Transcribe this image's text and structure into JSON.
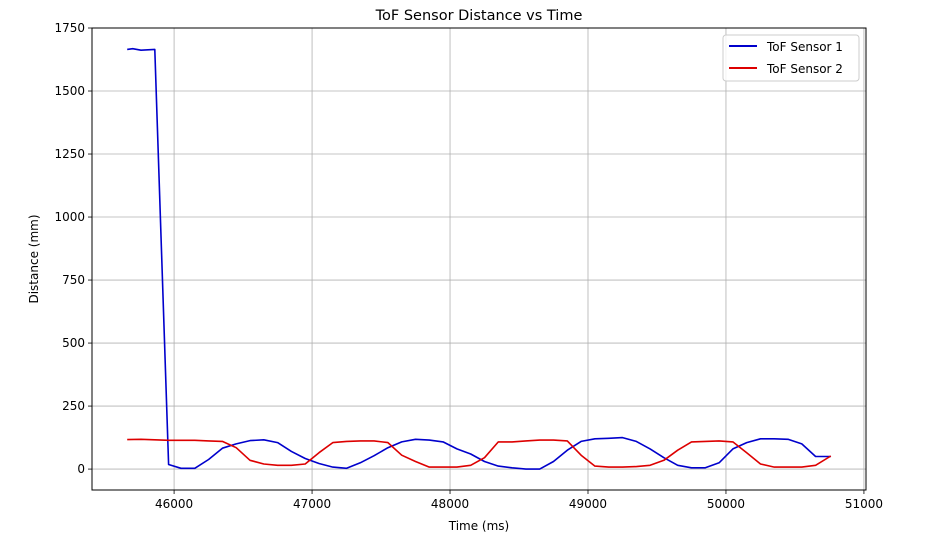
{
  "chart_data": {
    "type": "line",
    "title": "ToF Sensor Distance vs Time",
    "xlabel": "Time (ms)",
    "ylabel": "Distance (mm)",
    "xlim": [
      45405,
      51015
    ],
    "ylim": [
      -83,
      1750
    ],
    "xticks": [
      46000,
      47000,
      48000,
      49000,
      50000,
      51000
    ],
    "yticks": [
      0,
      250,
      500,
      750,
      1000,
      1250,
      1500,
      1750
    ],
    "grid": true,
    "legend_position": "upper right",
    "series": [
      {
        "name": "ToF Sensor 1",
        "color": "#0000cc",
        "x": [
          45660,
          45700,
          45760,
          45860,
          45960,
          46050,
          46150,
          46250,
          46350,
          46450,
          46550,
          46650,
          46750,
          46850,
          46950,
          47050,
          47150,
          47250,
          47350,
          47450,
          47550,
          47650,
          47750,
          47850,
          47950,
          48050,
          48150,
          48250,
          48350,
          48450,
          48550,
          48650,
          48750,
          48850,
          48950,
          49050,
          49150,
          49250,
          49350,
          49450,
          49550,
          49650,
          49750,
          49850,
          49950,
          50050,
          50150,
          50250,
          50350,
          50450,
          50550,
          50650,
          50760
        ],
        "y": [
          1665,
          1668,
          1662,
          1665,
          18,
          3,
          3,
          38,
          83,
          100,
          113,
          116,
          105,
          70,
          42,
          22,
          8,
          3,
          25,
          53,
          85,
          108,
          118,
          115,
          108,
          80,
          60,
          30,
          12,
          5,
          0,
          0,
          30,
          75,
          110,
          120,
          122,
          125,
          110,
          80,
          45,
          15,
          5,
          5,
          25,
          80,
          105,
          120,
          120,
          118,
          100,
          50,
          50
        ],
        "y_note": "estimated from pixel positions"
      },
      {
        "name": "ToF Sensor 2",
        "color": "#dd0000",
        "x": [
          45660,
          45760,
          45860,
          45960,
          46050,
          46150,
          46250,
          46350,
          46450,
          46550,
          46650,
          46750,
          46850,
          46950,
          47050,
          47150,
          47250,
          47350,
          47450,
          47550,
          47650,
          47750,
          47850,
          47950,
          48050,
          48150,
          48250,
          48350,
          48450,
          48550,
          48650,
          48750,
          48850,
          48950,
          49050,
          49150,
          49250,
          49350,
          49450,
          49550,
          49650,
          49750,
          49850,
          49950,
          50050,
          50150,
          50250,
          50350,
          50450,
          50550,
          50650,
          50760
        ],
        "y": [
          117,
          118,
          116,
          114,
          114,
          114,
          112,
          110,
          85,
          35,
          20,
          15,
          15,
          20,
          65,
          105,
          110,
          112,
          112,
          105,
          55,
          30,
          8,
          8,
          8,
          15,
          45,
          108,
          108,
          112,
          115,
          115,
          112,
          55,
          12,
          8,
          8,
          10,
          15,
          35,
          75,
          108,
          110,
          112,
          108,
          65,
          20,
          8,
          8,
          8,
          15,
          52
        ]
      }
    ]
  }
}
